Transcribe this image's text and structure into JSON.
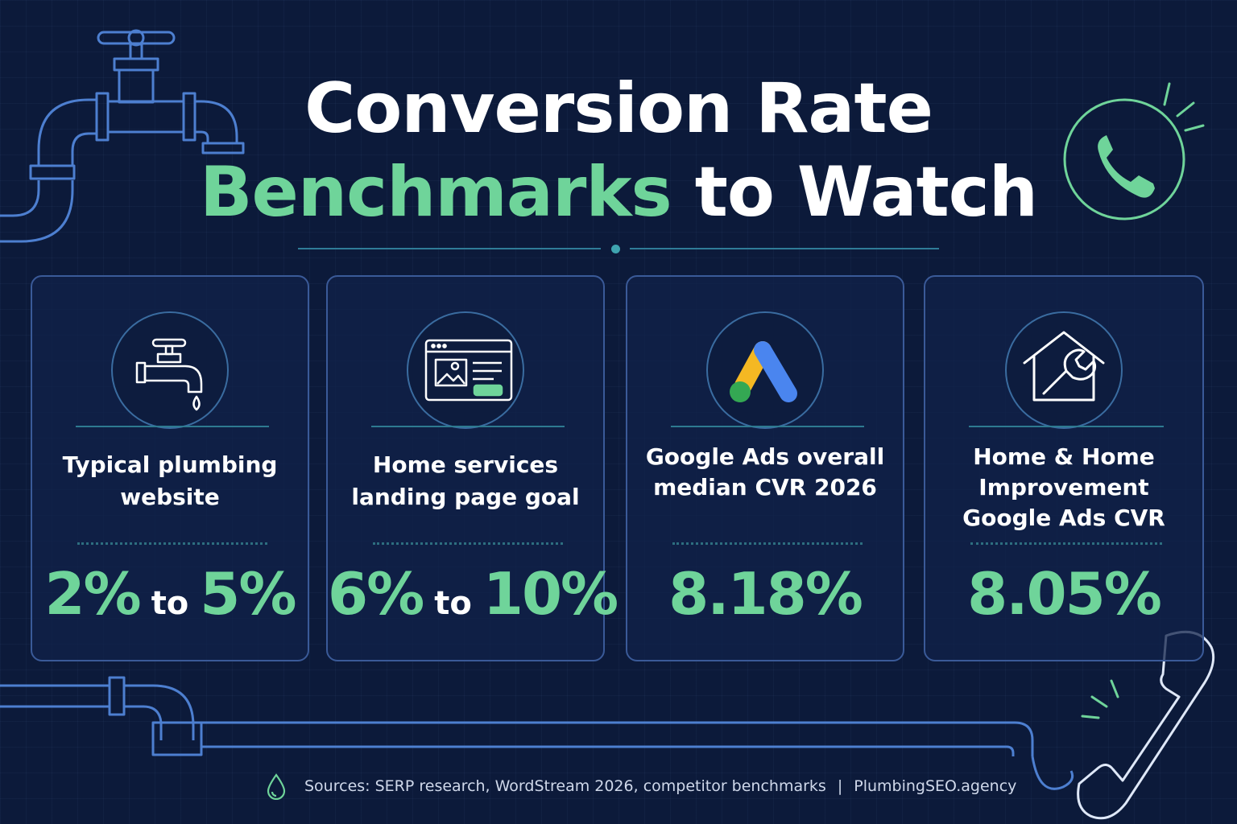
{
  "title": {
    "line1": "Conversion Rate",
    "line2_accent": "Benchmarks",
    "line2_rest": "to Watch"
  },
  "colors": {
    "background": "#0c1a3a",
    "accent_green": "#6fd49a",
    "pipe_blue": "#4d7fd0",
    "card_border": "#3a5a98"
  },
  "cards": [
    {
      "icon": "faucet-icon",
      "label": "Typical plumbing website",
      "value_low": "2%",
      "connector": "to",
      "value_high": "5%"
    },
    {
      "icon": "landing-page-icon",
      "label": "Home services landing page goal",
      "value_low": "6%",
      "connector": "to",
      "value_high": "10%"
    },
    {
      "icon": "google-ads-icon",
      "label": "Google Ads overall median CVR 2026",
      "value": "8.18%"
    },
    {
      "icon": "home-repair-icon",
      "label": "Home & Home Improvement Google Ads CVR",
      "value": "8.05%"
    }
  ],
  "footer": {
    "icon": "water-drop-icon",
    "sources": "Sources: SERP research, WordStream 2026, competitor benchmarks",
    "separator": "|",
    "brand": "PlumbingSEO.agency"
  },
  "decor_icons": [
    "pipe-faucet-icon",
    "phone-circle-icon",
    "pipe-bottom-icon",
    "telephone-handset-icon"
  ]
}
